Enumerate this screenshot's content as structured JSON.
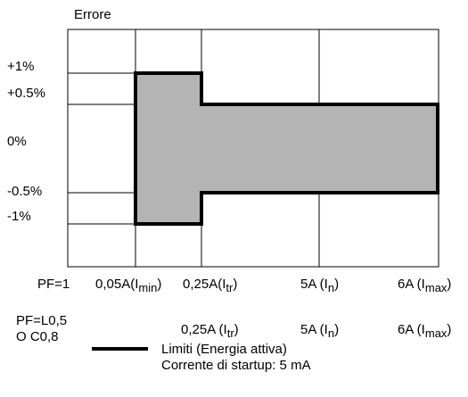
{
  "title": "Errore",
  "y_labels": {
    "p1": "+1%",
    "p05": "+0.5%",
    "z": "0%",
    "m05": "-0.5%",
    "m1": "-1%"
  },
  "row1": {
    "pf": "PF=1",
    "c1": {
      "main": "0,05A(I",
      "sub": "min",
      "tail": ")"
    },
    "c2": {
      "main": "0,25A(I",
      "sub": "tr",
      "tail": ")"
    },
    "c3": {
      "main": "5A (I",
      "sub": "n",
      "tail": ")"
    },
    "c4": {
      "main": "6A (I",
      "sub": "max",
      "tail": ")"
    }
  },
  "row2": {
    "pf_line1": "PF=L0,5",
    "pf_line2": "O C0,8",
    "c2": {
      "main": "0,25A (I",
      "sub": "tr",
      "tail": ")"
    },
    "c3": {
      "main": "5A (I",
      "sub": "n",
      "tail": ")"
    },
    "c4": {
      "main": "6A (I",
      "sub": "max",
      "tail": ")"
    }
  },
  "legend": {
    "line1": "Limiti (Energia attiva)",
    "line2": "Corrente di startup: 5 mA"
  },
  "colors": {
    "fill": "#b4b4b4",
    "stroke": "#000000"
  }
}
